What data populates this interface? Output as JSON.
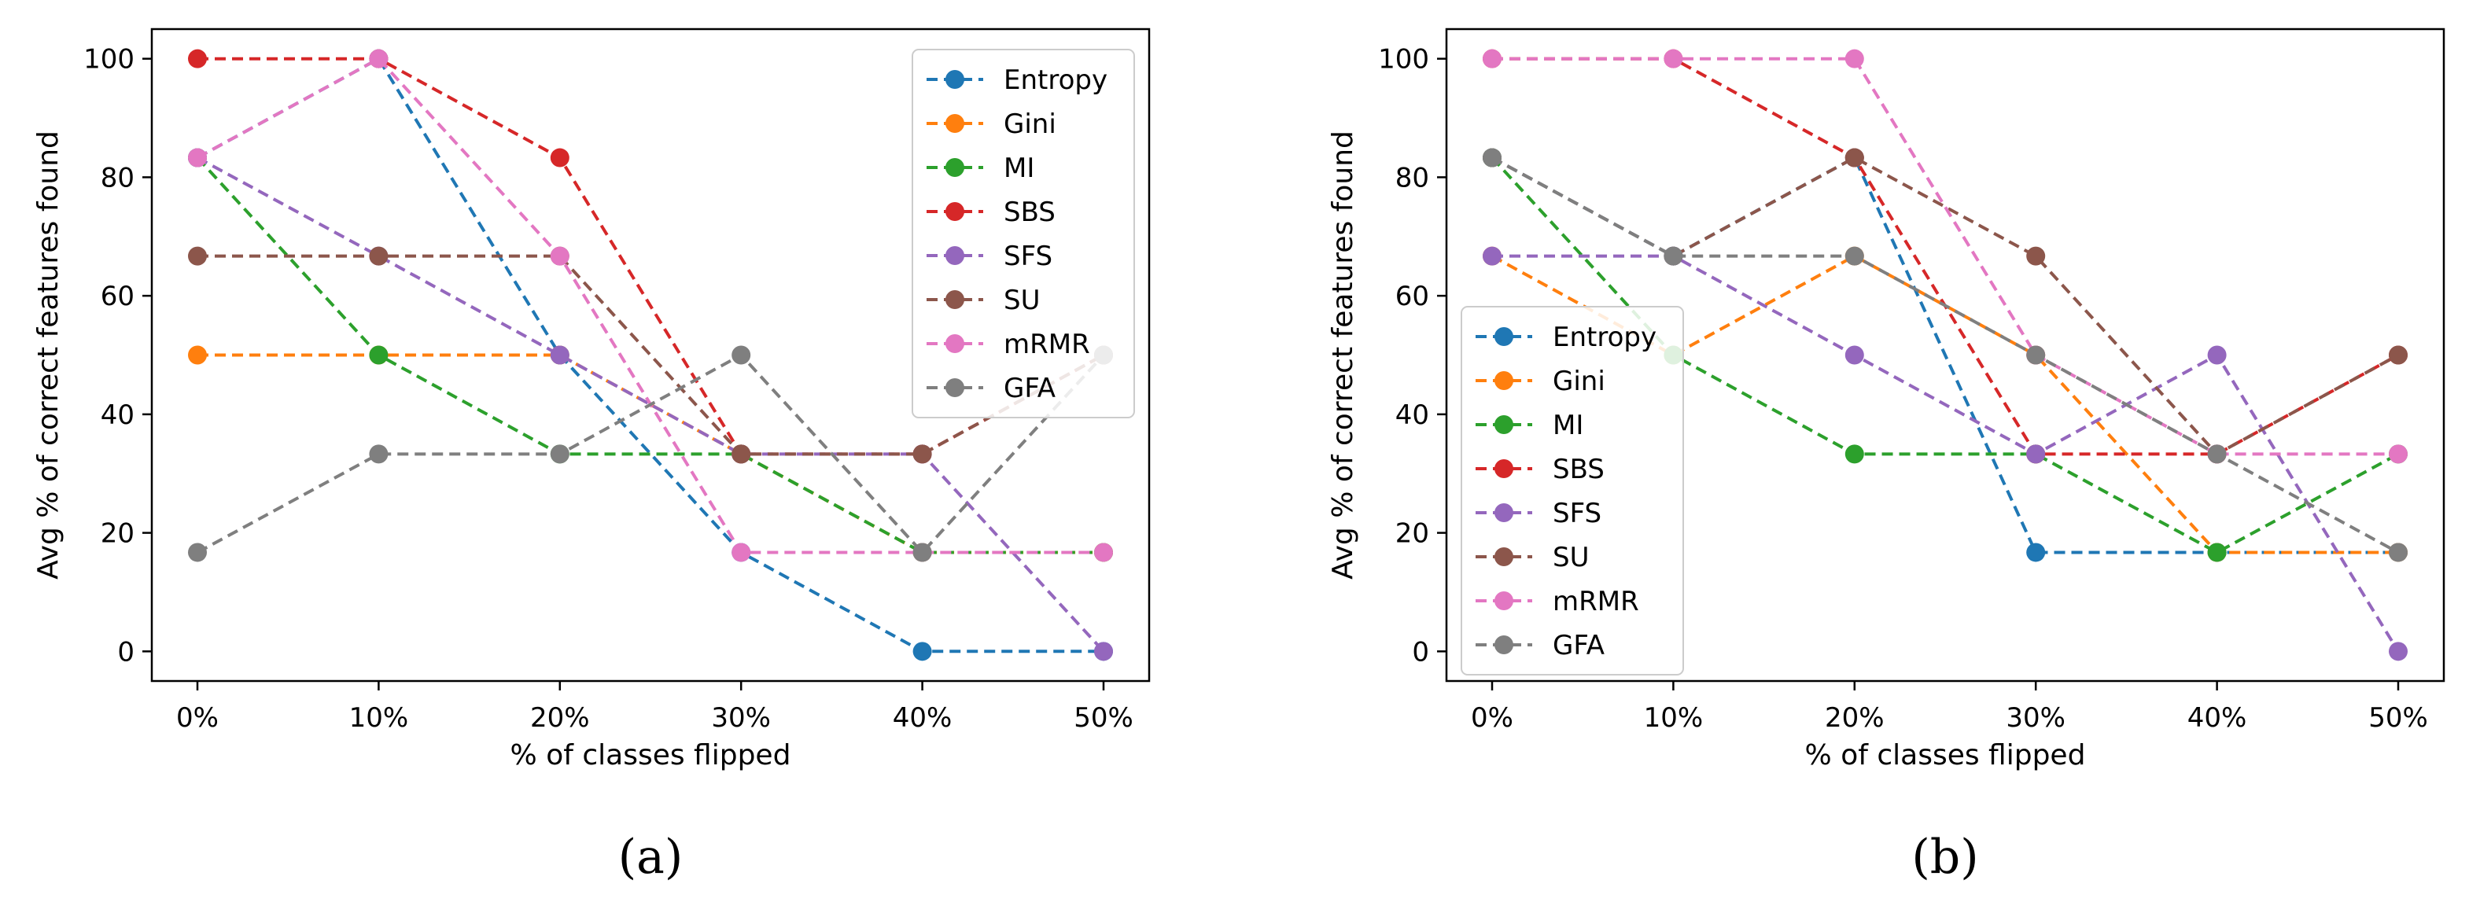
{
  "panels": [
    {
      "label": "(a)",
      "legend_position": "upper right",
      "chart_data": {
        "type": "line",
        "categories": [
          "0%",
          "10%",
          "20%",
          "30%",
          "40%",
          "50%"
        ],
        "xlabel": "% of classes flipped",
        "ylabel": "Avg % of correct features found",
        "ylim": [
          -5,
          105
        ],
        "yticks": [
          0,
          20,
          40,
          60,
          80,
          100
        ],
        "grid": false,
        "series": [
          {
            "name": "Entropy",
            "color": "#1f77b4",
            "values": [
              83.3,
              100,
              50,
              16.7,
              0,
              0
            ]
          },
          {
            "name": "Gini",
            "color": "#ff7f0e",
            "values": [
              50,
              50,
              50,
              33.3,
              16.7,
              16.7
            ]
          },
          {
            "name": "MI",
            "color": "#2ca02c",
            "values": [
              83.3,
              50,
              33.3,
              33.3,
              16.7,
              16.7
            ]
          },
          {
            "name": "SBS",
            "color": "#d62728",
            "values": [
              100,
              100,
              83.3,
              33.3,
              33.3,
              50
            ]
          },
          {
            "name": "SFS",
            "color": "#9467bd",
            "values": [
              83.3,
              66.7,
              50,
              33.3,
              33.3,
              0
            ]
          },
          {
            "name": "SU",
            "color": "#8c564b",
            "values": [
              66.7,
              66.7,
              66.7,
              33.3,
              33.3,
              50
            ]
          },
          {
            "name": "mRMR",
            "color": "#e377c2",
            "values": [
              83.3,
              100,
              66.7,
              16.7,
              16.7,
              16.7
            ]
          },
          {
            "name": "GFA",
            "color": "#7f7f7f",
            "values": [
              16.7,
              33.3,
              33.3,
              50,
              16.7,
              50
            ]
          }
        ]
      }
    },
    {
      "label": "(b)",
      "legend_position": "center left",
      "chart_data": {
        "type": "line",
        "categories": [
          "0%",
          "10%",
          "20%",
          "30%",
          "40%",
          "50%"
        ],
        "xlabel": "% of classes flipped",
        "ylabel": "Avg % of correct features found",
        "ylim": [
          -5,
          105
        ],
        "yticks": [
          0,
          20,
          40,
          60,
          80,
          100
        ],
        "grid": false,
        "series": [
          {
            "name": "Entropy",
            "color": "#1f77b4",
            "values": [
              83.3,
              66.7,
              83.3,
              16.7,
              16.7,
              16.7
            ]
          },
          {
            "name": "Gini",
            "color": "#ff7f0e",
            "values": [
              66.7,
              50,
              66.7,
              50,
              16.7,
              16.7
            ]
          },
          {
            "name": "MI",
            "color": "#2ca02c",
            "values": [
              83.3,
              50,
              33.3,
              33.3,
              16.7,
              33.3
            ]
          },
          {
            "name": "SBS",
            "color": "#d62728",
            "values": [
              100,
              100,
              83.3,
              33.3,
              33.3,
              50
            ]
          },
          {
            "name": "SFS",
            "color": "#9467bd",
            "values": [
              66.7,
              66.7,
              50,
              33.3,
              50,
              0
            ]
          },
          {
            "name": "SU",
            "color": "#8c564b",
            "values": [
              83.3,
              66.7,
              83.3,
              66.7,
              33.3,
              50
            ]
          },
          {
            "name": "mRMR",
            "color": "#e377c2",
            "values": [
              100,
              100,
              100,
              50,
              33.3,
              33.3
            ]
          },
          {
            "name": "GFA",
            "color": "#7f7f7f",
            "values": [
              83.3,
              66.7,
              66.7,
              50,
              33.3,
              16.7
            ]
          }
        ]
      }
    }
  ]
}
